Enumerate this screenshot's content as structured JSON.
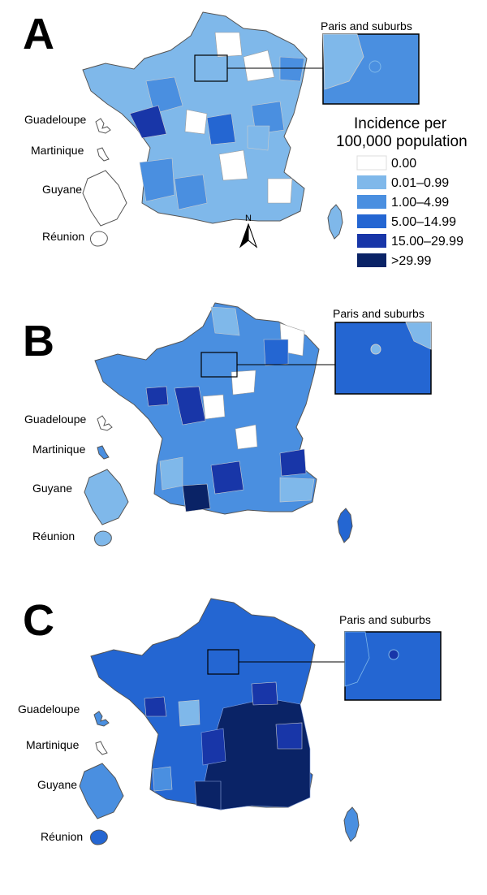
{
  "legend": {
    "title_line1": "Incidence per",
    "title_line2": "100,000 population",
    "classes": [
      {
        "label": "0.00",
        "color": "#ffffff"
      },
      {
        "label": "0.01–0.99",
        "color": "#7fb8ea"
      },
      {
        "label": "1.00–4.99",
        "color": "#4a8fe0"
      },
      {
        "label": "5.00–14.99",
        "color": "#2466d2"
      },
      {
        "label": "15.00–29.99",
        "color": "#1836a8"
      },
      {
        "label": ">29.99",
        "color": "#0a2366"
      }
    ]
  },
  "north_label": "N",
  "panels": [
    {
      "letter": "A",
      "inset_label": "Paris and suburbs",
      "overseas": [
        "Guadeloupe",
        "Martinique",
        "Guyane",
        "Réunion"
      ],
      "main_color": "#7fb8ea",
      "overseas_colors": [
        "#ffffff",
        "#ffffff",
        "#ffffff",
        "#ffffff"
      ],
      "corsica_color": "#7fb8ea",
      "inset_color": "#4a8fe0"
    },
    {
      "letter": "B",
      "inset_label": "Paris and suburbs",
      "overseas": [
        "Guadeloupe",
        "Martinique",
        "Guyane",
        "Réunion"
      ],
      "main_color": "#4a8fe0",
      "overseas_colors": [
        "#ffffff",
        "#4a8fe0",
        "#7fb8ea",
        "#7fb8ea"
      ],
      "corsica_color": "#2466d2",
      "inset_color": "#2466d2"
    },
    {
      "letter": "C",
      "inset_label": "Paris and suburbs",
      "overseas": [
        "Guadeloupe",
        "Martinique",
        "Guyane",
        "Réunion"
      ],
      "main_color": "#2466d2",
      "overseas_colors": [
        "#4a8fe0",
        "#ffffff",
        "#4a8fe0",
        "#2466d2"
      ],
      "corsica_color": "#4a8fe0",
      "inset_color": "#2466d2"
    }
  ]
}
